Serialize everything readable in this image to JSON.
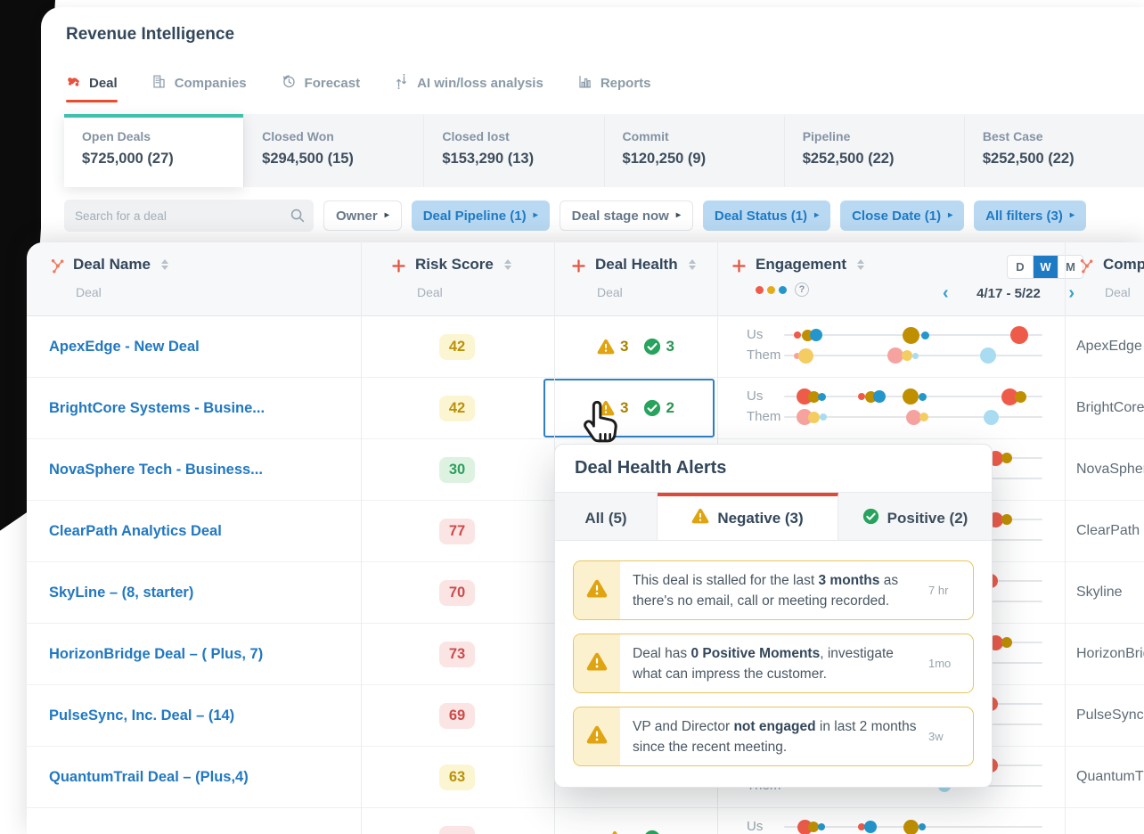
{
  "app": {
    "title": "Revenue Intelligence"
  },
  "nav": {
    "tabs": [
      {
        "label": "Deal",
        "active": true
      },
      {
        "label": "Companies"
      },
      {
        "label": "Forecast"
      },
      {
        "label": "AI win/loss analysis"
      },
      {
        "label": "Reports"
      }
    ]
  },
  "summary": {
    "cards": [
      {
        "label": "Open Deals",
        "value": "$725,000 (27)",
        "active": true
      },
      {
        "label": "Closed Won",
        "value": "$294,500 (15)"
      },
      {
        "label": "Closed lost",
        "value": "$153,290 (13)"
      },
      {
        "label": "Commit",
        "value": "$120,250 (9)"
      },
      {
        "label": "Pipeline",
        "value": "$252,500 (22)"
      },
      {
        "label": "Best Case",
        "value": "$252,500 (22)"
      }
    ]
  },
  "filters": {
    "search_placeholder": "Search for a deal",
    "chips": [
      {
        "label": "Owner",
        "style": "neutral"
      },
      {
        "label": "Deal Pipeline (1)",
        "style": "blue"
      },
      {
        "label": "Deal stage now",
        "style": "neutral"
      },
      {
        "label": "Deal Status (1)",
        "style": "blue"
      },
      {
        "label": "Close Date (1)",
        "style": "blue"
      },
      {
        "label": "All filters (3)",
        "style": "blue"
      }
    ]
  },
  "table": {
    "columns": [
      {
        "title": "Deal Name",
        "subtitle": "Deal"
      },
      {
        "title": "Risk Score",
        "subtitle": "Deal"
      },
      {
        "title": "Deal Health",
        "subtitle": "Deal"
      },
      {
        "title": "Engagement",
        "subtitle": ""
      },
      {
        "title": "Company",
        "subtitle": "Deal"
      }
    ],
    "engagement_header": {
      "toggle": [
        "D",
        "W",
        "M"
      ],
      "selected": "W",
      "range": "4/17 - 5/22"
    },
    "series_labels": {
      "us": "Us",
      "them": "Them"
    },
    "rows": [
      {
        "deal": "ApexEdge - New Deal",
        "risk": {
          "value": "42",
          "level": "medium"
        },
        "health": {
          "neg": "3",
          "pos": "3"
        },
        "company": "ApexEdge",
        "engagement": {
          "us": [
            {
              "p": 0.05,
              "r": 4,
              "c": "dot_red"
            },
            {
              "p": 0.09,
              "r": 6.5,
              "c": "dot_gold"
            },
            {
              "p": 0.125,
              "r": 7,
              "c": "dot_blue"
            },
            {
              "p": 0.49,
              "r": 9.5,
              "c": "dot_gold"
            },
            {
              "p": 0.545,
              "r": 4.5,
              "c": "dot_blue"
            },
            {
              "p": 0.91,
              "r": 10,
              "c": "dot_red"
            }
          ],
          "them": [
            {
              "p": 0.05,
              "r": 3.5,
              "c": "dot_pink"
            },
            {
              "p": 0.085,
              "r": 8.5,
              "c": "dot_yellow"
            },
            {
              "p": 0.43,
              "r": 9,
              "c": "dot_pink"
            },
            {
              "p": 0.475,
              "r": 6,
              "c": "dot_yellow"
            },
            {
              "p": 0.51,
              "r": 3.5,
              "c": "dot_lightblue"
            },
            {
              "p": 0.79,
              "r": 9,
              "c": "dot_lightblue"
            }
          ]
        }
      },
      {
        "deal": "BrightCore Systems - Busine...",
        "risk": {
          "value": "42",
          "level": "medium"
        },
        "health": {
          "neg": "3",
          "pos": "2",
          "selected": true
        },
        "company": "BrightCore",
        "engagement": {
          "us": [
            {
              "p": 0.08,
              "r": 9,
              "c": "dot_red"
            },
            {
              "p": 0.115,
              "r": 6.5,
              "c": "dot_gold"
            },
            {
              "p": 0.145,
              "r": 4.5,
              "c": "dot_blue"
            },
            {
              "p": 0.3,
              "r": 4,
              "c": "dot_red"
            },
            {
              "p": 0.335,
              "r": 6.5,
              "c": "dot_gold"
            },
            {
              "p": 0.37,
              "r": 7,
              "c": "dot_blue"
            },
            {
              "p": 0.49,
              "r": 9,
              "c": "dot_gold"
            },
            {
              "p": 0.535,
              "r": 4.5,
              "c": "dot_blue"
            },
            {
              "p": 0.875,
              "r": 9.5,
              "c": "dot_red"
            },
            {
              "p": 0.915,
              "r": 6.5,
              "c": "dot_gold"
            }
          ],
          "them": [
            {
              "p": 0.08,
              "r": 9,
              "c": "dot_pink"
            },
            {
              "p": 0.115,
              "r": 6.5,
              "c": "dot_yellow"
            },
            {
              "p": 0.15,
              "r": 4,
              "c": "dot_lightblue"
            },
            {
              "p": 0.5,
              "r": 8.5,
              "c": "dot_pink"
            },
            {
              "p": 0.54,
              "r": 5,
              "c": "dot_yellow"
            },
            {
              "p": 0.8,
              "r": 8.5,
              "c": "dot_lightblue"
            }
          ]
        }
      },
      {
        "deal": "NovaSphere Tech - Business...",
        "risk": {
          "value": "30",
          "level": "low"
        },
        "health": null,
        "company": "NovaSphere",
        "engagement": {
          "us": [
            {
              "p": 0.82,
              "r": 8.5,
              "c": "dot_red"
            },
            {
              "p": 0.862,
              "r": 6,
              "c": "dot_gold"
            }
          ],
          "them": []
        }
      },
      {
        "deal": "ClearPath Analytics Deal",
        "risk": {
          "value": "77",
          "level": "high"
        },
        "health": null,
        "company": "ClearPath",
        "engagement": {
          "us": [
            {
              "p": 0.82,
              "r": 8.5,
              "c": "dot_red"
            },
            {
              "p": 0.862,
              "r": 6,
              "c": "dot_gold"
            }
          ],
          "them": []
        }
      },
      {
        "deal": "SkyLine – (8, starter)",
        "risk": {
          "value": "70",
          "level": "high"
        },
        "health": null,
        "company": "Skyline",
        "engagement": {
          "us": [
            {
              "p": 0.8,
              "r": 8,
              "c": "dot_red"
            }
          ],
          "them": []
        }
      },
      {
        "deal": "HorizonBridge Deal – ( Plus, 7)",
        "risk": {
          "value": "73",
          "level": "high"
        },
        "health": null,
        "company": "HorizonBridge",
        "engagement": {
          "us": [
            {
              "p": 0.82,
              "r": 8.5,
              "c": "dot_red"
            },
            {
              "p": 0.862,
              "r": 6,
              "c": "dot_gold"
            }
          ],
          "them": []
        }
      },
      {
        "deal": "PulseSync, Inc. Deal – (14)",
        "risk": {
          "value": "69",
          "level": "high"
        },
        "health": null,
        "company": "PulseSync",
        "engagement": {
          "us": [
            {
              "p": 0.8,
              "r": 8,
              "c": "dot_red"
            }
          ],
          "them": []
        }
      },
      {
        "deal": "QuantumTrail Deal – (Plus,4)",
        "risk": {
          "value": "63",
          "level": "medium"
        },
        "health": null,
        "company": "QuantumTrail",
        "engagement": {
          "us": [
            {
              "p": 0.8,
              "r": 8,
              "c": "dot_red"
            }
          ],
          "them": [
            {
              "p": 0.62,
              "r": 7,
              "c": "dot_lightblue"
            }
          ]
        }
      },
      {
        "deal": "",
        "risk": {
          "value": "",
          "level": "high"
        },
        "health": {
          "neg": "",
          "pos": ""
        },
        "company": "",
        "engagement": {
          "us": [
            {
              "p": 0.08,
              "r": 8.5,
              "c": "dot_red"
            },
            {
              "p": 0.115,
              "r": 6,
              "c": "dot_gold"
            },
            {
              "p": 0.145,
              "r": 4,
              "c": "dot_blue"
            },
            {
              "p": 0.3,
              "r": 4,
              "c": "dot_red"
            },
            {
              "p": 0.335,
              "r": 7,
              "c": "dot_blue"
            },
            {
              "p": 0.49,
              "r": 8.5,
              "c": "dot_gold"
            },
            {
              "p": 0.535,
              "r": 4,
              "c": "dot_blue"
            }
          ],
          "them": []
        }
      }
    ]
  },
  "popup": {
    "title": "Deal Health Alerts",
    "tabs": [
      {
        "label": "All (5)"
      },
      {
        "label": "Negative (3)",
        "active": true,
        "icon": "warning"
      },
      {
        "label": "Positive (2)",
        "icon": "positive"
      }
    ],
    "alerts": [
      {
        "segments": [
          {
            "t": "This deal is stalled for the last "
          },
          {
            "t": "3 months",
            "b": true
          },
          {
            "t": " as there's no email, call or meeting recorded."
          }
        ],
        "meta": "7 hr"
      },
      {
        "segments": [
          {
            "t": "Deal has "
          },
          {
            "t": "0 Positive Moments",
            "b": true
          },
          {
            "t": ", investigate what can impress the customer."
          }
        ],
        "meta": "1mo"
      },
      {
        "segments": [
          {
            "t": "VP and Director "
          },
          {
            "t": "not engaged",
            "b": true
          },
          {
            "t": " in last 2 months since the recent meeting."
          }
        ],
        "meta": "3w"
      }
    ]
  },
  "colors": {
    "accent_blue": "#1f7ac4",
    "brand_red": "#eb4d2c",
    "teal": "#40c1ac",
    "selection_blue": "#2f7fc6",
    "warning_gold": "#dfa410",
    "positive_green": "#27a35d",
    "risk_medium_text": "#b9920b",
    "risk_low_text": "#2e9e5f",
    "risk_high_text": "#cc4b4b",
    "dot_red": "#ee5b49",
    "dot_gold": "#c08f00",
    "dot_blue": "#2596cb",
    "dot_pink": "#f6a3a0",
    "dot_yellow": "#f3cd61",
    "dot_lightblue": "#a9dcf1"
  }
}
